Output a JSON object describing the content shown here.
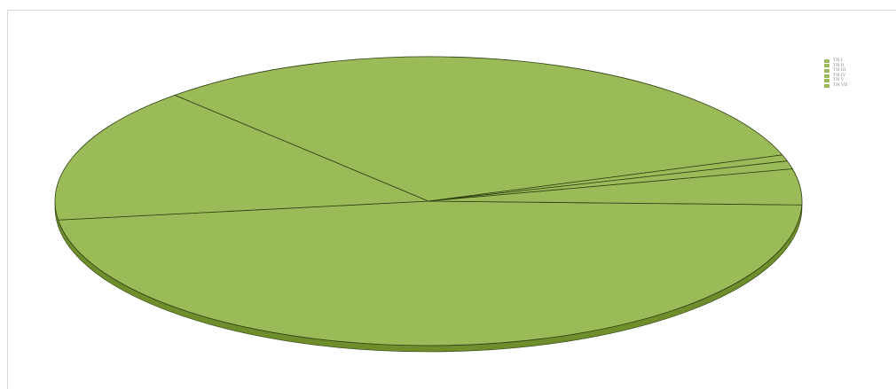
{
  "chart_data": {
    "type": "pie",
    "three_d": true,
    "title": "",
    "categories": [
      "TH I",
      "TH II",
      "TH III",
      "TH IV",
      "TH V",
      "TH VII"
    ],
    "values": [
      47.5,
      15.2,
      31.7,
      0.7,
      0.9,
      4.0
    ],
    "legend": {
      "entries": [
        "TH I",
        "TH II",
        "TH III",
        "TH IV",
        "TH V",
        "TH VII"
      ],
      "position": "top-right"
    },
    "colors": {
      "slice": "#9bbb59",
      "side": "#6e8e2c",
      "edge": "#2f3f12"
    }
  }
}
